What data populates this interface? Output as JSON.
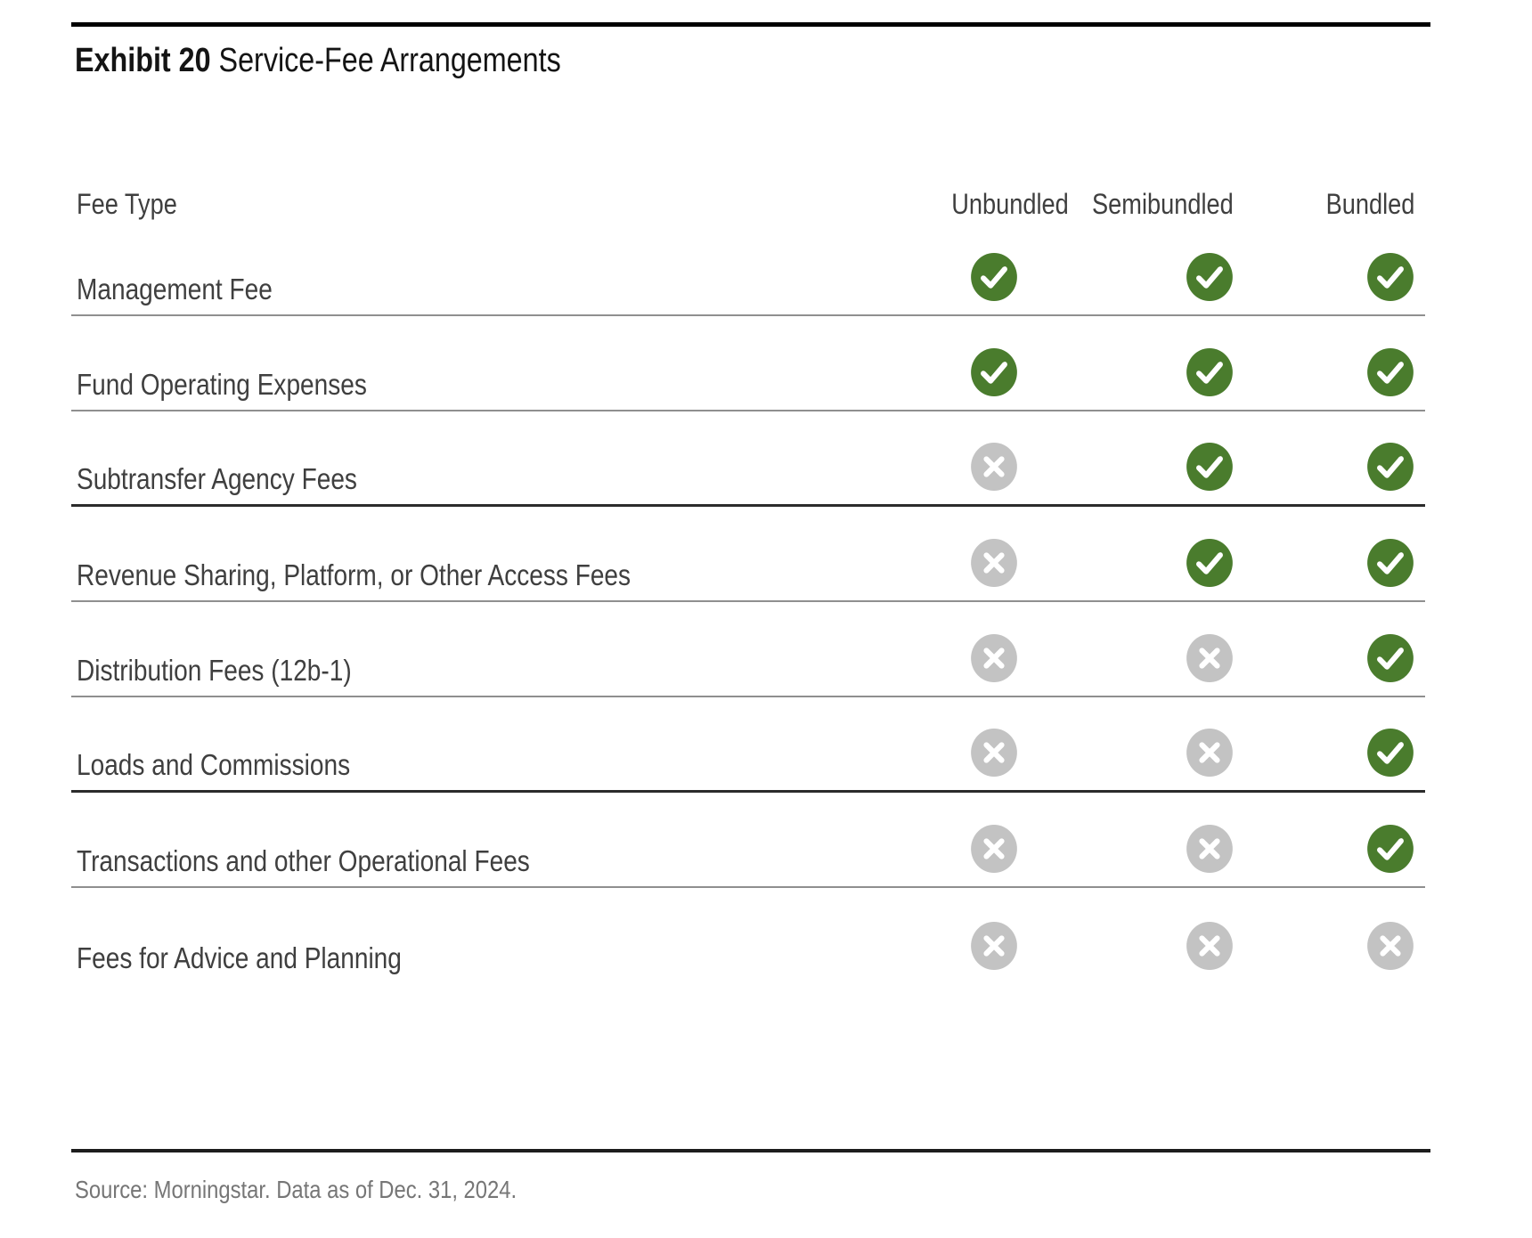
{
  "exhibit": {
    "label": "Exhibit 20",
    "title": "Service-Fee Arrangements"
  },
  "chart_data": {
    "type": "table",
    "title": "Exhibit 20 Service-Fee Arrangements",
    "columns": [
      "Fee Type",
      "Unbundled",
      "Semibundled",
      "Bundled"
    ],
    "rows": [
      {
        "fee_type": "Management Fee",
        "unbundled": "check",
        "semibundled": "check",
        "bundled": "check",
        "divider": "normal"
      },
      {
        "fee_type": "Fund Operating Expenses",
        "unbundled": "check",
        "semibundled": "check",
        "bundled": "check",
        "divider": "normal"
      },
      {
        "fee_type": "Subtransfer Agency Fees",
        "unbundled": "x",
        "semibundled": "check",
        "bundled": "check",
        "divider": "thick"
      },
      {
        "fee_type": "Revenue Sharing, Platform, or Other Access Fees",
        "unbundled": "x",
        "semibundled": "check",
        "bundled": "check",
        "divider": "normal"
      },
      {
        "fee_type": "Distribution Fees (12b-1)",
        "unbundled": "x",
        "semibundled": "x",
        "bundled": "check",
        "divider": "normal"
      },
      {
        "fee_type": "Loads and Commissions",
        "unbundled": "x",
        "semibundled": "x",
        "bundled": "check",
        "divider": "thick"
      },
      {
        "fee_type": "Transactions and other Operational Fees",
        "unbundled": "x",
        "semibundled": "x",
        "bundled": "check",
        "divider": "normal"
      },
      {
        "fee_type": "Fees for Advice and Planning",
        "unbundled": "x",
        "semibundled": "x",
        "bundled": "x",
        "divider": "none"
      }
    ]
  },
  "icons": {
    "check": {
      "name": "check-icon",
      "color": "#4a7c2d",
      "glyph_color": "#ffffff"
    },
    "x": {
      "name": "x-icon",
      "color": "#c3c3c3",
      "glyph_color": "#ffffff"
    }
  },
  "footer": {
    "source": "Source: Morningstar. Data as of Dec. 31, 2024."
  }
}
